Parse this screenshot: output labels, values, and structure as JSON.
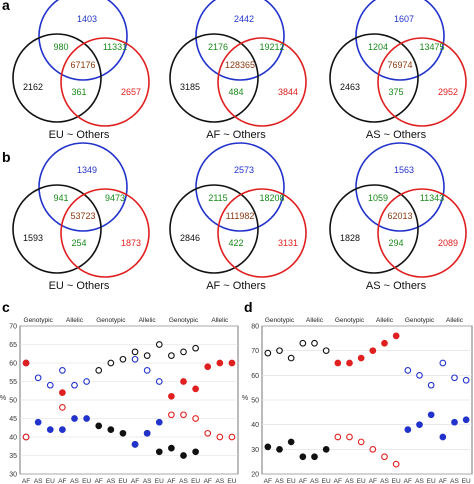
{
  "panel_labels": [
    "a",
    "b",
    "c",
    "d"
  ],
  "colors": {
    "black": "#111111",
    "blue": "#2233cc",
    "red": "#e02020",
    "green": "#1a8a1a",
    "brown": "#8a3a10",
    "grid": "#dddddd"
  },
  "venn_a": [
    {
      "top": "1403",
      "left_overlap": "980",
      "right_overlap": "11331",
      "center": "67176",
      "left": "2162",
      "bottom_overlap": "361",
      "right": "2657",
      "label": "EU ~ Others"
    },
    {
      "top": "2442",
      "left_overlap": "2176",
      "right_overlap": "19212",
      "center": "128365",
      "left": "3185",
      "bottom_overlap": "484",
      "right": "3844",
      "label": "AF ~ Others"
    },
    {
      "top": "1607",
      "left_overlap": "1204",
      "right_overlap": "13475",
      "center": "76974",
      "left": "2463",
      "bottom_overlap": "375",
      "right": "2952",
      "label": "AS ~ Others"
    }
  ],
  "venn_b": [
    {
      "top": "1349",
      "left_overlap": "941",
      "right_overlap": "9473",
      "center": "53723",
      "left": "1593",
      "bottom_overlap": "254",
      "right": "1873",
      "label": "EU ~ Others"
    },
    {
      "top": "2573",
      "left_overlap": "2115",
      "right_overlap": "18208",
      "center": "111982",
      "left": "2846",
      "bottom_overlap": "422",
      "right": "3131",
      "label": "AF ~ Others"
    },
    {
      "top": "1563",
      "left_overlap": "1059",
      "right_overlap": "11343",
      "center": "62013",
      "left": "1828",
      "bottom_overlap": "294",
      "right": "2089",
      "label": "AS ~ Others"
    }
  ],
  "chart_data": [
    {
      "type": "scatter",
      "panel": "c",
      "group_labels": [
        "Genotypic",
        "Allelic",
        "Genotypic",
        "Allelic",
        "Genotypic",
        "Allelic"
      ],
      "ylabel": "%",
      "ylim": [
        30,
        70
      ],
      "yticks": [
        30,
        35,
        40,
        45,
        50,
        55,
        60,
        65,
        70
      ],
      "categories": [
        "AF",
        "AS",
        "EU",
        "AF",
        "AS",
        "EU",
        "AF",
        "AS",
        "EU",
        "AF",
        "AS",
        "EU",
        "AF",
        "AS",
        "EU",
        "AF",
        "AS",
        "EU"
      ],
      "series": [
        {
          "color": "black",
          "fill": "open",
          "values": [
            null,
            null,
            null,
            null,
            null,
            null,
            58,
            60,
            61,
            63,
            62,
            65,
            62,
            63,
            64,
            null,
            null,
            null
          ]
        },
        {
          "color": "black",
          "fill": "filled",
          "values": [
            null,
            null,
            null,
            null,
            null,
            null,
            43,
            42,
            41,
            38,
            41,
            36,
            37,
            35,
            36,
            null,
            null,
            null
          ]
        },
        {
          "color": "blue",
          "fill": "open",
          "values": [
            60,
            56,
            54,
            58,
            54,
            55,
            null,
            null,
            null,
            61,
            58,
            55,
            null,
            null,
            null,
            null,
            null,
            null
          ]
        },
        {
          "color": "blue",
          "fill": "filled",
          "values": [
            40,
            44,
            42,
            42,
            45,
            45,
            null,
            null,
            null,
            38,
            41,
            44,
            null,
            null,
            null,
            null,
            null,
            null
          ]
        },
        {
          "color": "red",
          "fill": "filled",
          "values": [
            60,
            null,
            null,
            52,
            null,
            null,
            null,
            null,
            null,
            null,
            null,
            null,
            51,
            55,
            53,
            59,
            60,
            60
          ]
        },
        {
          "color": "red",
          "fill": "open",
          "values": [
            40,
            null,
            null,
            48,
            null,
            null,
            null,
            null,
            null,
            null,
            null,
            null,
            46,
            46,
            45,
            41,
            40,
            40
          ]
        }
      ]
    },
    {
      "type": "scatter",
      "panel": "d",
      "group_labels": [
        "Genotypic",
        "Allelic",
        "Genotypic",
        "Allelic",
        "Genotypic",
        "Allelic"
      ],
      "ylabel": "%",
      "ylim": [
        20,
        80
      ],
      "yticks": [
        20,
        30,
        40,
        50,
        60,
        70,
        80
      ],
      "categories": [
        "AF",
        "AS",
        "EU",
        "AF",
        "AS",
        "EU",
        "AF",
        "AS",
        "EU",
        "AF",
        "AS",
        "EU",
        "AF",
        "AS",
        "EU",
        "AF",
        "AS",
        "EU"
      ],
      "series": [
        {
          "color": "black",
          "fill": "open",
          "values": [
            69,
            70,
            67,
            73,
            73,
            70,
            null,
            null,
            null,
            null,
            null,
            null,
            null,
            null,
            null,
            null,
            null,
            null
          ]
        },
        {
          "color": "black",
          "fill": "filled",
          "values": [
            31,
            30,
            33,
            27,
            27,
            30,
            null,
            null,
            null,
            null,
            null,
            null,
            null,
            null,
            null,
            null,
            null,
            null
          ]
        },
        {
          "color": "red",
          "fill": "filled",
          "values": [
            null,
            null,
            null,
            null,
            null,
            null,
            65,
            65,
            67,
            70,
            73,
            76,
            null,
            null,
            null,
            null,
            null,
            null
          ]
        },
        {
          "color": "red",
          "fill": "open",
          "values": [
            null,
            null,
            null,
            null,
            null,
            null,
            35,
            35,
            33,
            30,
            27,
            24,
            null,
            null,
            null,
            null,
            null,
            null
          ]
        },
        {
          "color": "blue",
          "fill": "open",
          "values": [
            null,
            null,
            null,
            null,
            null,
            null,
            null,
            null,
            null,
            null,
            null,
            null,
            62,
            60,
            56,
            65,
            59,
            58
          ]
        },
        {
          "color": "blue",
          "fill": "filled",
          "values": [
            null,
            null,
            null,
            null,
            null,
            null,
            null,
            null,
            null,
            null,
            null,
            null,
            38,
            40,
            44,
            35,
            41,
            42
          ]
        }
      ]
    }
  ]
}
